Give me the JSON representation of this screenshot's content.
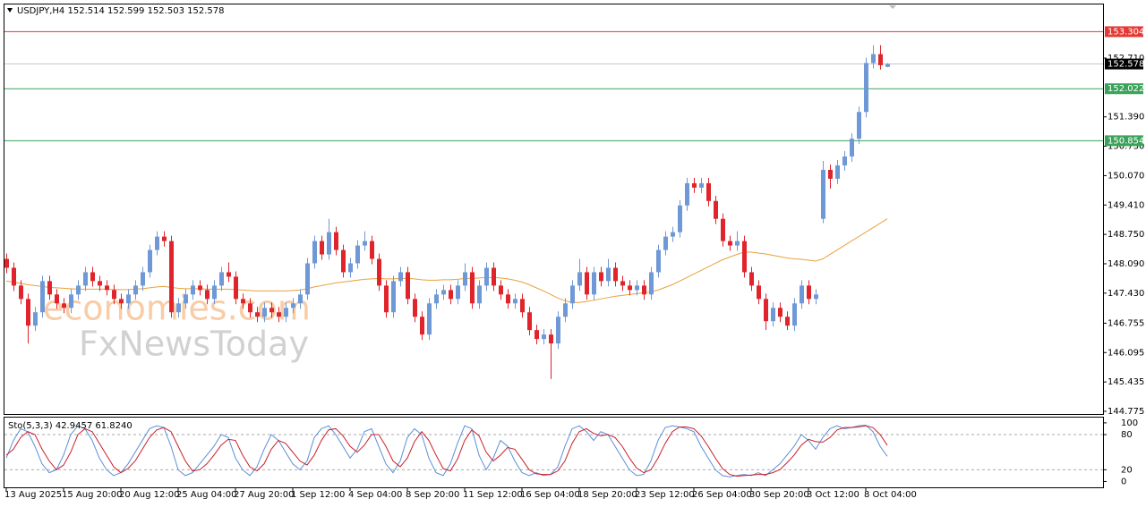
{
  "chart_data": [
    {
      "type": "candlestick",
      "title": "USDJPY,H4",
      "categories": [
        "13 Aug 2025",
        null,
        null,
        null,
        null,
        null,
        null,
        null,
        "15 Aug 20:00",
        null,
        null,
        null,
        null,
        null,
        null,
        null,
        "20 Aug 12:00",
        null,
        null,
        null,
        null,
        null,
        null,
        null,
        "25 Aug 04:00",
        null,
        null,
        null,
        null,
        null,
        null,
        null,
        "27 Aug 20:00",
        null,
        null,
        null,
        null,
        null,
        null,
        null,
        "1 Sep 12:00",
        null,
        null,
        null,
        null,
        null,
        null,
        null,
        "4 Sep 04:00",
        null,
        null,
        null,
        null,
        null,
        null,
        null,
        "8 Sep 20:00",
        null,
        null,
        null,
        null,
        null,
        null,
        null,
        "11 Sep 12:00",
        null,
        null,
        null,
        null,
        null,
        null,
        null,
        "16 Sep 04:00",
        null,
        null,
        null,
        null,
        null,
        null,
        null,
        "18 Sep 20:00",
        null,
        null,
        null,
        null,
        null,
        null,
        null,
        "23 Sep 12:00",
        null,
        null,
        null,
        null,
        null,
        null,
        null,
        "26 Sep 04:00",
        null,
        null,
        null,
        null,
        null,
        null,
        null,
        "30 Sep 20:00",
        null,
        null,
        null,
        null,
        null,
        null,
        null,
        "3 Oct 12:00",
        null,
        null,
        null,
        null,
        null,
        null,
        null,
        "8 Oct 04:00",
        null,
        null,
        null
      ],
      "open": [
        148.2,
        148.0,
        147.6,
        147.3,
        146.7,
        147.0,
        147.7,
        147.4,
        147.2,
        147.1,
        147.4,
        147.6,
        147.9,
        147.7,
        147.6,
        147.5,
        147.3,
        147.2,
        147.4,
        147.6,
        147.9,
        148.4,
        148.7,
        148.6,
        147.0,
        147.2,
        147.4,
        147.6,
        147.5,
        147.3,
        147.6,
        147.9,
        147.8,
        147.3,
        147.2,
        147.0,
        146.9,
        147.1,
        147.0,
        146.9,
        147.1,
        147.2,
        147.4,
        148.1,
        148.6,
        148.3,
        148.8,
        148.4,
        147.9,
        148.1,
        148.5,
        148.6,
        148.2,
        147.6,
        147.0,
        147.7,
        147.9,
        147.3,
        146.9,
        146.5,
        147.2,
        147.4,
        147.5,
        147.3,
        147.6,
        147.9,
        147.2,
        147.6,
        148.0,
        147.6,
        147.4,
        147.2,
        147.3,
        147.0,
        146.6,
        146.4,
        146.5,
        146.3,
        146.9,
        147.2,
        147.6,
        147.9,
        147.4,
        147.9,
        147.7,
        148.0,
        147.7,
        147.6,
        147.5,
        147.6,
        147.4,
        147.9,
        148.4,
        148.7,
        148.8,
        149.4,
        149.9,
        149.8,
        149.9,
        149.5,
        149.1,
        148.6,
        148.5,
        148.6,
        147.9,
        147.6,
        147.3,
        146.8,
        147.1,
        146.9,
        146.7,
        147.2,
        147.6,
        147.3,
        149.1,
        150.2,
        150.0,
        150.3,
        150.5,
        150.9,
        151.5,
        152.6,
        152.8,
        152.514
      ],
      "high": [
        148.32,
        148.12,
        147.72,
        147.42,
        147.12,
        147.82,
        147.82,
        147.52,
        147.32,
        147.52,
        147.72,
        148.02,
        148.02,
        147.82,
        147.72,
        147.62,
        147.42,
        147.52,
        147.72,
        148.02,
        148.52,
        148.82,
        148.82,
        148.72,
        147.32,
        147.52,
        147.72,
        147.72,
        147.62,
        147.72,
        148.02,
        148.12,
        147.92,
        147.42,
        147.32,
        147.12,
        147.22,
        147.22,
        147.12,
        147.22,
        147.32,
        147.52,
        148.22,
        148.72,
        148.72,
        149.1,
        148.92,
        148.52,
        148.22,
        148.62,
        148.82,
        148.72,
        148.32,
        147.72,
        147.82,
        148.02,
        148.02,
        147.42,
        147.02,
        147.32,
        147.52,
        147.62,
        147.62,
        147.72,
        148.1,
        148.02,
        147.72,
        148.12,
        148.12,
        147.72,
        147.52,
        147.42,
        147.42,
        147.12,
        146.72,
        146.62,
        146.62,
        147.02,
        147.32,
        147.72,
        148.2,
        148.02,
        148.02,
        148.02,
        148.2,
        148.12,
        147.82,
        147.72,
        147.72,
        147.72,
        148.02,
        148.52,
        148.82,
        148.92,
        149.52,
        150.02,
        150.02,
        150.02,
        150.02,
        149.62,
        149.22,
        148.72,
        148.82,
        148.72,
        148.02,
        147.72,
        147.42,
        147.22,
        147.22,
        147.02,
        147.32,
        147.72,
        147.72,
        147.52,
        150.4,
        150.32,
        150.42,
        150.62,
        151.02,
        151.62,
        152.72,
        153.0,
        153.0,
        152.599
      ],
      "low": [
        147.88,
        147.48,
        147.18,
        146.3,
        146.58,
        146.88,
        147.28,
        147.08,
        146.98,
        146.98,
        147.28,
        147.48,
        147.58,
        147.48,
        147.38,
        147.18,
        147.08,
        147.08,
        147.28,
        147.48,
        147.78,
        148.28,
        148.48,
        146.88,
        146.88,
        147.08,
        147.28,
        147.38,
        147.18,
        147.18,
        147.48,
        147.68,
        147.18,
        147.08,
        146.88,
        146.78,
        146.78,
        146.88,
        146.78,
        146.78,
        146.98,
        147.08,
        147.28,
        147.98,
        148.18,
        148.18,
        148.28,
        147.78,
        147.78,
        147.98,
        148.38,
        148.08,
        147.48,
        146.88,
        146.88,
        147.58,
        147.18,
        146.78,
        146.38,
        146.38,
        147.08,
        147.28,
        147.18,
        147.18,
        147.48,
        147.08,
        147.08,
        147.48,
        147.48,
        147.28,
        147.08,
        147.08,
        146.88,
        146.48,
        146.28,
        146.28,
        145.5,
        146.18,
        146.78,
        147.08,
        147.48,
        147.28,
        147.28,
        147.58,
        147.58,
        147.58,
        147.48,
        147.38,
        147.38,
        147.28,
        147.28,
        147.78,
        148.28,
        148.58,
        148.68,
        149.28,
        149.68,
        149.68,
        149.38,
        148.98,
        148.48,
        148.38,
        148.38,
        147.78,
        147.48,
        147.18,
        146.6,
        146.68,
        146.78,
        146.6,
        146.58,
        147.08,
        147.18,
        147.18,
        149.0,
        149.78,
        149.88,
        150.18,
        150.38,
        150.78,
        151.38,
        152.48,
        152.45,
        152.503
      ],
      "close": [
        148.0,
        147.6,
        147.3,
        146.7,
        147.0,
        147.7,
        147.4,
        147.2,
        147.1,
        147.4,
        147.6,
        147.9,
        147.7,
        147.6,
        147.5,
        147.3,
        147.2,
        147.4,
        147.6,
        147.9,
        148.4,
        148.7,
        148.6,
        147.0,
        147.2,
        147.4,
        147.6,
        147.5,
        147.3,
        147.6,
        147.9,
        147.8,
        147.3,
        147.2,
        147.0,
        146.9,
        147.1,
        147.0,
        146.9,
        147.1,
        147.2,
        147.4,
        148.1,
        148.6,
        148.3,
        148.8,
        148.4,
        147.9,
        148.1,
        148.5,
        148.6,
        148.2,
        147.6,
        147.0,
        147.7,
        147.9,
        147.3,
        146.9,
        146.5,
        147.2,
        147.4,
        147.5,
        147.3,
        147.6,
        147.9,
        147.2,
        147.6,
        148.0,
        147.6,
        147.4,
        147.2,
        147.3,
        147.0,
        146.6,
        146.4,
        146.5,
        146.3,
        146.9,
        147.2,
        147.6,
        147.9,
        147.4,
        147.9,
        147.7,
        148.0,
        147.7,
        147.6,
        147.5,
        147.6,
        147.4,
        147.9,
        148.4,
        148.7,
        148.8,
        149.4,
        149.9,
        149.8,
        149.9,
        149.5,
        149.1,
        148.6,
        148.5,
        148.6,
        147.9,
        147.6,
        147.3,
        146.8,
        147.1,
        146.9,
        146.7,
        147.2,
        147.6,
        147.3,
        147.4,
        150.2,
        150.0,
        150.3,
        150.5,
        150.9,
        151.5,
        152.6,
        152.8,
        152.55,
        152.578
      ],
      "up_color": "#6f98d6",
      "down_color": "#e0242b",
      "overlays": [
        {
          "color": "#e8a23a",
          "values": [
            147.7,
            147.68,
            147.65,
            147.62,
            147.6,
            147.58,
            147.56,
            147.55,
            147.54,
            147.53,
            147.52,
            147.52,
            147.52,
            147.52,
            147.52,
            147.51,
            147.51,
            147.51,
            147.52,
            147.53,
            147.55,
            147.57,
            147.58,
            147.56,
            147.54,
            147.53,
            147.53,
            147.53,
            147.52,
            147.52,
            147.52,
            147.52,
            147.51,
            147.5,
            147.49,
            147.48,
            147.48,
            147.48,
            147.48,
            147.48,
            147.49,
            147.5,
            147.53,
            147.57,
            147.6,
            147.63,
            147.66,
            147.68,
            147.7,
            147.72,
            147.74,
            147.75,
            147.76,
            147.75,
            147.75,
            147.76,
            147.76,
            147.75,
            147.73,
            147.72,
            147.72,
            147.73,
            147.73,
            147.74,
            147.76,
            147.76,
            147.77,
            147.78,
            147.78,
            147.77,
            147.75,
            147.72,
            147.68,
            147.62,
            147.55,
            147.48,
            147.4,
            147.32,
            147.26,
            147.22,
            147.22,
            147.24,
            147.27,
            147.3,
            147.33,
            147.36,
            147.38,
            147.4,
            147.42,
            147.44,
            147.46,
            147.5,
            147.56,
            147.62,
            147.7,
            147.78,
            147.86,
            147.94,
            148.02,
            148.1,
            148.18,
            148.24,
            148.3,
            148.35,
            148.35,
            148.33,
            148.31,
            148.28,
            148.25,
            148.22,
            148.2,
            148.19,
            148.17,
            148.15,
            148.2,
            148.3,
            148.4,
            148.5,
            148.6,
            148.7,
            148.8,
            148.9,
            149.0,
            149.1
          ]
        }
      ],
      "price_line_color": "#c8c8c8",
      "levels": [
        {
          "value": 153.304,
          "color": "#e53935"
        },
        {
          "value": 152.022,
          "color": "#3aa35a"
        },
        {
          "value": 150.854,
          "color": "#3aa35a"
        }
      ],
      "ylim": [
        144.715,
        153.915
      ],
      "yticks": [
        144.775,
        145.435,
        146.095,
        146.755,
        {
          "value": 147.43,
          "label": "147.430"
        },
        {
          "value": 148.09,
          "label": "148.090"
        },
        {
          "value": 148.75,
          "label": "148.750"
        },
        {
          "value": 149.41,
          "label": "149.410"
        },
        {
          "value": 150.07,
          "label": "150.070"
        },
        {
          "value": 150.73,
          "label": "150.730"
        },
        {
          "value": 151.39,
          "label": "151.390"
        },
        {
          "value": 152.71,
          "label": "152.710"
        }
      ],
      "watermarks": [
        "economies.com",
        "FxNewsToday"
      ]
    },
    {
      "type": "line",
      "title": "Sto(5,3,3)",
      "series": [
        {
          "color": "#5b8fd8",
          "values": [
            40,
            70,
            90,
            85,
            60,
            30,
            15,
            20,
            45,
            80,
            95,
            90,
            70,
            40,
            20,
            10,
            15,
            30,
            50,
            70,
            90,
            95,
            92,
            60,
            20,
            10,
            15,
            30,
            45,
            60,
            80,
            75,
            40,
            20,
            10,
            25,
            55,
            80,
            70,
            50,
            30,
            20,
            35,
            75,
            90,
            95,
            80,
            60,
            40,
            55,
            85,
            90,
            60,
            30,
            15,
            35,
            75,
            90,
            80,
            40,
            15,
            10,
            30,
            65,
            95,
            90,
            45,
            20,
            40,
            70,
            60,
            35,
            15,
            10,
            15,
            10,
            12,
            25,
            60,
            90,
            95,
            85,
            70,
            85,
            80,
            60,
            40,
            20,
            10,
            12,
            35,
            70,
            92,
            95,
            93,
            90,
            85,
            60,
            40,
            20,
            10,
            8,
            10,
            12,
            10,
            15,
            10,
            20,
            30,
            45,
            60,
            80,
            70,
            55,
            75,
            90,
            95,
            90,
            92,
            95,
            96,
            85,
            60,
            42.9457
          ]
        },
        {
          "color": "#c8202a",
          "readout_label": "61.8240",
          "values": [
            45,
            55,
            75,
            85,
            80,
            55,
            35,
            20,
            28,
            50,
            80,
            90,
            85,
            65,
            45,
            25,
            15,
            22,
            35,
            55,
            75,
            88,
            92,
            85,
            60,
            35,
            18,
            20,
            30,
            45,
            62,
            72,
            70,
            45,
            25,
            18,
            30,
            55,
            70,
            65,
            50,
            35,
            28,
            45,
            70,
            88,
            90,
            78,
            60,
            50,
            62,
            80,
            80,
            60,
            35,
            25,
            40,
            68,
            85,
            70,
            45,
            22,
            18,
            38,
            70,
            88,
            78,
            50,
            35,
            45,
            58,
            55,
            38,
            20,
            13,
            12,
            12,
            18,
            35,
            65,
            85,
            90,
            82,
            78,
            80,
            75,
            60,
            40,
            23,
            15,
            20,
            40,
            65,
            85,
            93,
            93,
            90,
            78,
            60,
            40,
            22,
            12,
            9,
            10,
            11,
            12,
            12,
            15,
            20,
            32,
            45,
            62,
            72,
            68,
            67,
            75,
            88,
            92,
            92,
            93,
            95,
            92,
            80,
            61.824
          ]
        }
      ],
      "ylim": [
        -10,
        109
      ],
      "yticks": [
        100,
        80,
        20,
        0
      ],
      "dashed_levels": [
        80,
        20
      ]
    }
  ]
}
